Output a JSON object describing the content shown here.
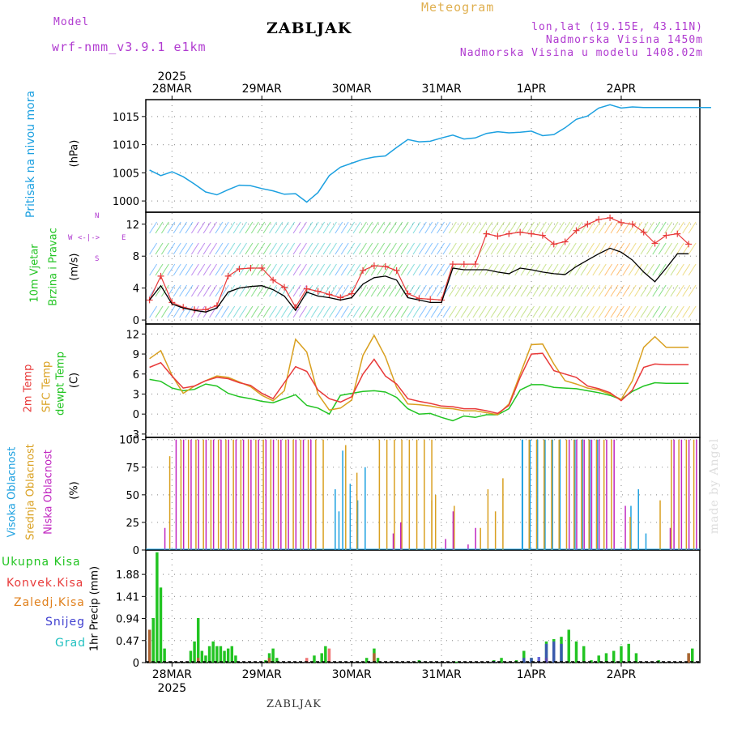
{
  "header": {
    "model_label": "Model",
    "model_value": "wrf-nmm_v3.9.1 e1km",
    "station": "ZABLJAK",
    "product": "Meteogram",
    "coords": "lon,lat (19.15E, 43.11N)",
    "elevation": "Nadmorska Visina 1450m",
    "model_elevation": "Nadmorska Visina u modelu 1408.02m"
  },
  "footer": {
    "station": "ZABLJAK",
    "credit": "made by Angel"
  },
  "wind_direction_key": {
    "n": "N",
    "s": "S",
    "w": "W",
    "e": "E"
  },
  "colors": {
    "pressure": "#1ca0e0",
    "wind_speed": "#000000",
    "gust": "#e83a3a",
    "t2m": "#e83a3a",
    "sfc": "#d9a020",
    "dewpt": "#22c422",
    "high_cloud": "#1ca0e0",
    "mid_cloud": "#d9a020",
    "low_cloud": "#c026c0",
    "total_precip": "#22c422",
    "conv_precip": "#e83a3a",
    "frz_precip": "#e0801c",
    "snow": "#4040d0",
    "graupel": "#20c0c0"
  },
  "chart_data": [
    {
      "type": "line",
      "panel": "pressure",
      "side_label": "Pritisak na nivou mora",
      "ylabel": "(hPa)",
      "ylim": [
        998,
        1018
      ],
      "yticks": [
        1000,
        1005,
        1010,
        1015
      ],
      "x_unit": "hours from 28MAR 00UTC",
      "x": [
        -6,
        -3,
        0,
        3,
        6,
        9,
        12,
        15,
        18,
        21,
        24,
        27,
        30,
        33,
        36,
        39,
        42,
        45,
        48,
        51,
        54,
        57,
        60,
        63,
        66,
        69,
        72,
        75,
        78,
        81,
        84,
        87,
        90,
        93,
        96,
        99,
        102,
        105,
        108,
        111,
        114,
        117,
        120,
        123,
        126,
        129,
        132,
        135,
        138,
        141,
        144
      ],
      "values": [
        1005.5,
        1004.5,
        1005.2,
        1004.3,
        1003,
        1001.6,
        1001.1,
        1002,
        1002.8,
        1002.7,
        1002.2,
        1001.8,
        1001.2,
        1001.3,
        999.8,
        1001.5,
        1004.5,
        1006,
        1006.7,
        1007.4,
        1007.8,
        1008,
        1009.5,
        1010.9,
        1010.5,
        1010.6,
        1011.2,
        1011.7,
        1011,
        1011.2,
        1012,
        1012.3,
        1012.1,
        1012.2,
        1012.4,
        1011.6,
        1011.8,
        1013,
        1014.5,
        1015.1,
        1016.5,
        1017.1,
        1016.5,
        1016.7,
        1016.6,
        1016.6,
        1016.6,
        1016.6,
        1016.6,
        1016.6,
        1016.6
      ]
    },
    {
      "type": "line",
      "panel": "wind",
      "side_label": "10m Vjetar Brzina i Pravac",
      "ylabel": "(m/s)",
      "ylim": [
        -0.5,
        13.5
      ],
      "yticks": [
        0,
        4,
        8,
        12
      ],
      "x_unit": "hours from 28MAR 00UTC",
      "x": [
        -6,
        -3,
        0,
        3,
        6,
        9,
        12,
        15,
        18,
        21,
        24,
        27,
        30,
        33,
        36,
        39,
        42,
        45,
        48,
        51,
        54,
        57,
        60,
        63,
        66,
        69,
        72,
        75,
        78,
        81,
        84,
        87,
        90,
        93,
        96,
        99,
        102,
        105,
        108,
        111,
        114,
        117,
        120,
        123,
        126,
        129,
        132,
        135,
        138
      ],
      "series": [
        {
          "name": "speed",
          "values": [
            2.5,
            4.3,
            2,
            1.5,
            1.2,
            1,
            1.5,
            3.5,
            4,
            4.2,
            4.3,
            3.8,
            3,
            1.2,
            3.5,
            3,
            2.8,
            2.5,
            2.8,
            4.5,
            5.3,
            5.5,
            5,
            2.8,
            2.5,
            2.2,
            2.2,
            6.5,
            6.3,
            6.3,
            6.3,
            6,
            5.8,
            6.5,
            6.3,
            6,
            5.8,
            5.7,
            6.7,
            7.5,
            8.3,
            9,
            8.5,
            7.5,
            6,
            4.8,
            6.5,
            8.3,
            8.3
          ]
        },
        {
          "name": "gust",
          "values": [
            2.5,
            5.5,
            2.2,
            1.6,
            1.3,
            1.3,
            1.8,
            5.5,
            6.4,
            6.5,
            6.5,
            5,
            4.1,
            1.6,
            3.9,
            3.6,
            3.2,
            2.8,
            3.3,
            6.2,
            6.8,
            6.7,
            6.2,
            3.3,
            2.7,
            2.6,
            2.5,
            7,
            7,
            7,
            10.8,
            10.5,
            10.8,
            11,
            10.8,
            10.6,
            9.5,
            9.8,
            11.2,
            12,
            12.6,
            12.8,
            12.2,
            12,
            11,
            9.6,
            10.6,
            10.8,
            9.5
          ]
        }
      ]
    },
    {
      "type": "line",
      "panel": "temperature",
      "side_label_t2m": "2m Temp",
      "side_label_sfc": "SFC Temp",
      "side_label_dew": "dewpt Temp",
      "ylabel": "(C)",
      "ylim": [
        -3.5,
        13.5
      ],
      "yticks": [
        -3,
        0,
        3,
        6,
        9,
        12
      ],
      "x_unit": "hours from 28MAR 00UTC",
      "x": [
        -6,
        -3,
        0,
        3,
        6,
        9,
        12,
        15,
        18,
        21,
        24,
        27,
        30,
        33,
        36,
        39,
        42,
        45,
        48,
        51,
        54,
        57,
        60,
        63,
        66,
        69,
        72,
        75,
        78,
        81,
        84,
        87,
        90,
        93,
        96,
        99,
        102,
        105,
        108,
        111,
        114,
        117,
        120,
        123,
        126,
        129,
        132,
        135,
        138
      ],
      "series": [
        {
          "name": "t2m",
          "values": [
            7,
            7.7,
            5.7,
            3.9,
            4.2,
            5,
            5.5,
            5.3,
            4.7,
            4.3,
            3.1,
            2.3,
            4.7,
            7.1,
            6.4,
            3.6,
            2.3,
            1.8,
            2.6,
            6,
            8.2,
            5.7,
            4.5,
            2.3,
            1.9,
            1.6,
            1.2,
            1.1,
            0.8,
            0.8,
            0.5,
            0.1,
            1.3,
            5.5,
            9,
            9.1,
            6.5,
            6,
            5.5,
            4.2,
            3.8,
            3.2,
            2,
            3.6,
            7,
            7.5,
            7.4,
            7.4,
            7.4
          ]
        },
        {
          "name": "sfc",
          "values": [
            8.3,
            9.5,
            5.8,
            3.1,
            4.2,
            5,
            5.7,
            5.5,
            4.8,
            4.1,
            2.8,
            2,
            3.5,
            11.2,
            9.3,
            3,
            0.6,
            0.9,
            2.1,
            8.8,
            11.8,
            8.6,
            4,
            1.5,
            1.4,
            1.2,
            0.9,
            0.8,
            0.5,
            0.5,
            0.2,
            -0.1,
            1.5,
            6,
            10.4,
            10.5,
            7.5,
            5,
            4.5,
            3.9,
            3.6,
            3,
            2.2,
            5,
            10,
            11.6,
            10,
            10,
            10
          ]
        },
        {
          "name": "dewpt",
          "values": [
            5.2,
            4.9,
            3.9,
            3.5,
            3.7,
            4.5,
            4.2,
            3.1,
            2.6,
            2.3,
            1.9,
            1.7,
            2.3,
            2.9,
            1.3,
            0.9,
            0,
            2.8,
            3.1,
            3.4,
            3.5,
            3.3,
            2.5,
            0.8,
            0,
            0.1,
            -0.5,
            -1,
            -0.3,
            -0.5,
            -0.1,
            -0.1,
            0.8,
            3.6,
            4.4,
            4.4,
            4,
            3.9,
            3.8,
            3.5,
            3.2,
            2.8,
            2.2,
            3.4,
            4.2,
            4.7,
            4.6,
            4.6,
            4.6
          ]
        }
      ]
    },
    {
      "type": "bar",
      "panel": "clouds",
      "side_label_high": "Visoka Oblacnost",
      "side_label_mid": "Srednja Oblacnost",
      "side_label_low": "Niska Oblacnost",
      "ylabel": "(%)",
      "ylim": [
        0,
        102
      ],
      "yticks": [
        0,
        25,
        50,
        75,
        100
      ],
      "x_unit": "hours from 28MAR 00UTC",
      "periods_full": [
        {
          "series": "high",
          "from": 94,
          "to": 104
        },
        {
          "series": "high",
          "from": 108,
          "to": 115
        },
        {
          "series": "mid",
          "from": 2,
          "to": 40
        },
        {
          "series": "mid",
          "from": 55,
          "to": 69
        },
        {
          "series": "mid",
          "from": 95,
          "to": 117
        },
        {
          "series": "mid",
          "from": 133,
          "to": 139
        },
        {
          "series": "low",
          "from": 0,
          "to": 36
        },
        {
          "series": "low",
          "from": 105,
          "to": 118
        },
        {
          "series": "low",
          "from": 133,
          "to": 140
        }
      ],
      "partial_high": [
        [
          44,
          55
        ],
        [
          45,
          35
        ],
        [
          46,
          90
        ],
        [
          48,
          60
        ],
        [
          50,
          45
        ],
        [
          52,
          75
        ],
        [
          123,
          40
        ],
        [
          125,
          55
        ],
        [
          127,
          15
        ]
      ],
      "partial_mid": [
        [
          -1,
          85
        ],
        [
          46,
          95
        ],
        [
          49,
          70
        ],
        [
          69,
          45
        ],
        [
          70,
          50
        ],
        [
          75,
          40
        ],
        [
          82,
          20
        ],
        [
          84,
          55
        ],
        [
          86,
          35
        ],
        [
          88,
          65
        ],
        [
          122,
          30
        ],
        [
          130,
          45
        ]
      ],
      "partial_low": [
        [
          -3,
          20
        ],
        [
          58,
          15
        ],
        [
          60,
          25
        ],
        [
          72,
          10
        ],
        [
          74,
          35
        ],
        [
          78,
          5
        ],
        [
          80,
          20
        ],
        [
          120,
          40
        ],
        [
          132,
          20
        ]
      ]
    },
    {
      "type": "bar",
      "panel": "precipitation",
      "side_label_total": "Ukupna Kisa",
      "side_label_conv": "Konvek.Kisa",
      "side_label_frz": "Zaledj.Kisa",
      "side_label_snow": "Snijeg",
      "side_label_grad": "Grad",
      "ylabel": "1hr Precip (mm)",
      "ylim": [
        0,
        2.4
      ],
      "yticks": [
        0,
        0.47,
        0.94,
        1.41,
        1.88
      ],
      "ytick_labels": [
        "0",
        "0.47",
        "0.94",
        "1.41",
        "1.88"
      ],
      "x_unit": "hours from 28MAR 00UTC",
      "total": [
        [
          -6,
          0.7
        ],
        [
          -5,
          0.95
        ],
        [
          -4,
          2.35
        ],
        [
          -3,
          1.6
        ],
        [
          -2,
          0.3
        ],
        [
          5,
          0.25
        ],
        [
          6,
          0.45
        ],
        [
          7,
          0.95
        ],
        [
          8,
          0.25
        ],
        [
          9,
          0.15
        ],
        [
          10,
          0.35
        ],
        [
          11,
          0.45
        ],
        [
          12,
          0.35
        ],
        [
          13,
          0.35
        ],
        [
          14,
          0.25
        ],
        [
          15,
          0.3
        ],
        [
          16,
          0.35
        ],
        [
          17,
          0.15
        ],
        [
          25,
          0.05
        ],
        [
          26,
          0.2
        ],
        [
          27,
          0.3
        ],
        [
          28,
          0.1
        ],
        [
          38,
          0.15
        ],
        [
          40,
          0.2
        ],
        [
          41,
          0.35
        ],
        [
          52,
          0.1
        ],
        [
          54,
          0.3
        ],
        [
          55,
          0.1
        ],
        [
          66,
          0.05
        ],
        [
          76,
          0.02
        ],
        [
          86,
          0.05
        ],
        [
          88,
          0.1
        ],
        [
          92,
          0.05
        ],
        [
          94,
          0.25
        ],
        [
          96,
          0.1
        ],
        [
          100,
          0.45
        ],
        [
          102,
          0.5
        ],
        [
          104,
          0.55
        ],
        [
          106,
          0.7
        ],
        [
          108,
          0.45
        ],
        [
          110,
          0.35
        ],
        [
          112,
          0.05
        ],
        [
          114,
          0.15
        ],
        [
          116,
          0.2
        ],
        [
          118,
          0.25
        ],
        [
          120,
          0.35
        ],
        [
          122,
          0.4
        ],
        [
          124,
          0.2
        ],
        [
          130,
          0.05
        ],
        [
          138,
          0.2
        ],
        [
          139,
          0.3
        ]
      ],
      "convective": [
        [
          -6,
          0.7
        ],
        [
          7,
          0.1
        ],
        [
          26,
          0.1
        ],
        [
          36,
          0.1
        ],
        [
          42,
          0.3
        ],
        [
          54,
          0.2
        ],
        [
          100,
          0.1
        ],
        [
          138,
          0.2
        ]
      ],
      "snow": [
        [
          86,
          0.03
        ],
        [
          94,
          0.1
        ],
        [
          96,
          0.1
        ],
        [
          98,
          0.12
        ],
        [
          100,
          0.4
        ],
        [
          102,
          0.45
        ],
        [
          104,
          0.4
        ]
      ]
    }
  ],
  "x_axis": {
    "year": "2025",
    "dates": [
      "28MAR",
      "29MAR",
      "30MAR",
      "31MAR",
      "1APR",
      "2APR"
    ],
    "date_offsets_h": [
      0,
      24,
      48,
      72,
      96,
      120
    ],
    "xlim_h": [
      -7,
      141
    ]
  }
}
